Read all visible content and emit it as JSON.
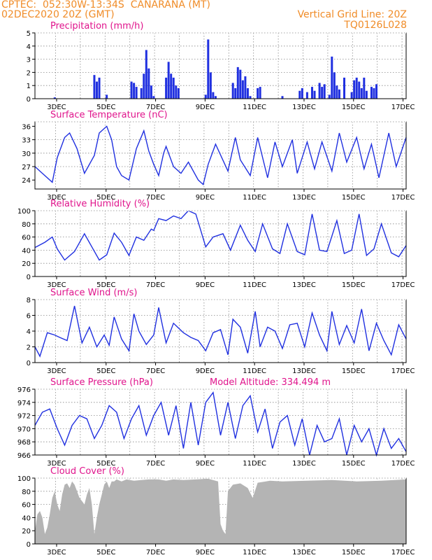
{
  "header": {
    "source_location": "CPTEC:  052:30W-13:34S  CANARANA (MT)",
    "init_time": "02DEC2020 20Z (GMT)",
    "grid_note": "Vertical Grid Line: 20Z",
    "model_code": "TQ0126L028"
  },
  "colors": {
    "header": "#f08c28",
    "title": "#e0148c",
    "line": "#2030e0",
    "cloud": "#b4b4b4"
  },
  "x_tick_labels": [
    "3DEC",
    "5DEC",
    "7DEC",
    "9DEC",
    "11DEC",
    "13DEC",
    "15DEC",
    "17DEC"
  ],
  "model_altitude": "Model Altitude: 334.494 m",
  "chart_data": [
    {
      "type": "bar",
      "title": "Precipitation (mm/h)",
      "ylim": [
        0,
        5
      ],
      "yticks": [
        "0",
        "1",
        "2",
        "3",
        "4",
        "5"
      ],
      "x_range_days": [
        2,
        17
      ],
      "x": [
        2.8,
        4.4,
        4.5,
        4.6,
        4.9,
        5.9,
        6.0,
        6.1,
        6.3,
        6.4,
        6.5,
        6.6,
        6.7,
        6.8,
        7.3,
        7.4,
        7.5,
        7.6,
        7.7,
        7.8,
        8.9,
        9.0,
        9.1,
        9.2,
        9.3,
        10.0,
        10.1,
        10.2,
        10.3,
        10.4,
        10.5,
        10.6,
        10.7,
        11.0,
        11.1,
        12.0,
        12.7,
        12.8,
        13.0,
        13.2,
        13.3,
        13.5,
        13.6,
        13.7,
        13.9,
        14.0,
        14.1,
        14.2,
        14.3,
        14.5,
        14.8,
        14.9,
        15.0,
        15.1,
        15.2,
        15.3,
        15.4,
        15.6,
        15.7,
        15.8
      ],
      "values": [
        0.1,
        1.8,
        1.3,
        1.6,
        0.3,
        1.3,
        1.2,
        0.9,
        0.8,
        1.9,
        3.7,
        2.3,
        1.0,
        0.2,
        1.6,
        2.8,
        1.9,
        1.6,
        1.0,
        0.8,
        0.3,
        4.5,
        2.0,
        0.5,
        0.2,
        1.2,
        0.8,
        2.4,
        2.2,
        1.4,
        1.7,
        0.8,
        0.2,
        0.8,
        0.9,
        0.2,
        0.6,
        0.8,
        0.5,
        0.9,
        0.6,
        1.2,
        0.9,
        1.1,
        0.3,
        3.2,
        2.0,
        1.0,
        0.7,
        1.6,
        0.5,
        1.4,
        1.6,
        1.3,
        0.8,
        1.6,
        0.6,
        0.9,
        0.8,
        1.1
      ]
    },
    {
      "type": "line",
      "title": "Surface Temperature (nC)",
      "ylim": [
        22,
        37
      ],
      "yticks": [
        "24",
        "27",
        "30",
        "33",
        "36"
      ],
      "x_range_days": [
        2,
        17
      ],
      "x": [
        2.0,
        2.3,
        2.7,
        2.9,
        3.2,
        3.4,
        3.7,
        4.0,
        4.4,
        4.6,
        4.9,
        5.1,
        5.3,
        5.5,
        5.8,
        6.1,
        6.4,
        6.6,
        6.8,
        7.0,
        7.2,
        7.3,
        7.6,
        7.9,
        8.2,
        8.6,
        8.8,
        9.0,
        9.3,
        9.8,
        10.1,
        10.3,
        10.7,
        11.0,
        11.4,
        11.7,
        12.0,
        12.4,
        12.6,
        13.0,
        13.3,
        13.6,
        14.0,
        14.3,
        14.6,
        15.0,
        15.3,
        15.6,
        15.9,
        16.3,
        16.6,
        17.0
      ],
      "values": [
        27.0,
        25.5,
        23.5,
        29.0,
        33.5,
        34.5,
        31.0,
        25.5,
        29.5,
        34.5,
        36.0,
        33.0,
        27.0,
        25.0,
        24.0,
        31.0,
        35.0,
        30.5,
        27.5,
        25.0,
        30.0,
        31.5,
        27.0,
        25.5,
        28.0,
        24.0,
        23.0,
        27.5,
        32.0,
        26.0,
        33.5,
        28.5,
        25.0,
        33.5,
        24.5,
        32.5,
        27.0,
        33.0,
        25.5,
        32.5,
        26.5,
        32.5,
        26.0,
        34.5,
        28.0,
        33.5,
        26.5,
        32.0,
        24.5,
        34.5,
        27.0,
        33.5
      ]
    },
    {
      "type": "line",
      "title": "Relative Humidity (%)",
      "ylim": [
        0,
        100
      ],
      "yticks": [
        "0",
        "20",
        "40",
        "60",
        "80",
        "100"
      ],
      "x_range_days": [
        2,
        17
      ],
      "x": [
        2.0,
        2.4,
        2.7,
        2.9,
        3.2,
        3.6,
        4.0,
        4.3,
        4.6,
        4.9,
        5.2,
        5.5,
        5.8,
        6.1,
        6.4,
        6.7,
        6.8,
        7.0,
        7.3,
        7.6,
        7.9,
        8.2,
        8.5,
        8.7,
        8.9,
        9.2,
        9.6,
        9.9,
        10.3,
        10.6,
        10.9,
        11.2,
        11.6,
        11.9,
        12.2,
        12.6,
        12.9,
        13.2,
        13.5,
        13.8,
        14.2,
        14.5,
        14.8,
        15.1,
        15.4,
        15.7,
        16.0,
        16.4,
        16.7,
        17.0
      ],
      "values": [
        44.0,
        52.0,
        60.0,
        42.0,
        25.0,
        38.0,
        65.0,
        45.0,
        25.0,
        33.0,
        66.0,
        52.0,
        32.0,
        60.0,
        55.0,
        72.0,
        70.0,
        88.0,
        85.0,
        92.0,
        88.0,
        100.0,
        95.0,
        70.0,
        45.0,
        60.0,
        65.0,
        40.0,
        78.0,
        55.0,
        38.0,
        80.0,
        42.0,
        35.0,
        80.0,
        38.0,
        33.0,
        95.0,
        40.0,
        38.0,
        85.0,
        35.0,
        40.0,
        95.0,
        32.0,
        42.0,
        80.0,
        36.0,
        30.0,
        47.0
      ]
    },
    {
      "type": "line",
      "title": "Surface Wind (m/s)",
      "ylim": [
        0,
        8
      ],
      "yticks": [
        "0",
        "2",
        "4",
        "6",
        "8"
      ],
      "x_range_days": [
        2,
        17
      ],
      "x": [
        2.0,
        2.2,
        2.5,
        2.8,
        3.0,
        3.3,
        3.6,
        3.9,
        4.2,
        4.5,
        4.8,
        5.0,
        5.2,
        5.5,
        5.8,
        6.0,
        6.2,
        6.5,
        6.8,
        7.0,
        7.3,
        7.6,
        8.0,
        8.3,
        8.6,
        8.9,
        9.2,
        9.5,
        9.8,
        10.0,
        10.3,
        10.6,
        10.9,
        11.1,
        11.4,
        11.7,
        12.0,
        12.3,
        12.6,
        12.9,
        13.2,
        13.5,
        13.8,
        14.0,
        14.3,
        14.6,
        14.9,
        15.2,
        15.5,
        15.8,
        16.1,
        16.4,
        16.7,
        17.0
      ],
      "values": [
        2.0,
        0.8,
        3.8,
        3.5,
        3.2,
        2.8,
        7.2,
        2.5,
        4.5,
        2.0,
        3.5,
        2.2,
        5.8,
        3.0,
        1.5,
        6.2,
        4.0,
        2.3,
        3.5,
        7.0,
        2.5,
        5.0,
        3.8,
        3.2,
        2.8,
        1.5,
        3.8,
        4.2,
        1.0,
        5.5,
        4.5,
        1.2,
        6.5,
        2.0,
        4.5,
        4.0,
        1.8,
        4.8,
        5.0,
        2.0,
        6.3,
        3.5,
        1.5,
        6.5,
        2.3,
        4.7,
        2.5,
        6.8,
        1.5,
        5.0,
        2.8,
        1.0,
        4.8,
        3.0
      ]
    },
    {
      "type": "line",
      "title": "Surface Pressure (hPa)",
      "ylim": [
        966,
        976
      ],
      "yticks": [
        "966",
        "968",
        "970",
        "972",
        "974",
        "976"
      ],
      "x_range_days": [
        2,
        17
      ],
      "x": [
        2.0,
        2.3,
        2.6,
        2.9,
        3.2,
        3.5,
        3.8,
        4.1,
        4.4,
        4.7,
        5.0,
        5.3,
        5.6,
        5.9,
        6.2,
        6.5,
        6.8,
        7.1,
        7.4,
        7.7,
        8.0,
        8.3,
        8.6,
        8.9,
        9.2,
        9.5,
        9.8,
        10.1,
        10.4,
        10.7,
        11.0,
        11.3,
        11.6,
        11.9,
        12.2,
        12.5,
        12.8,
        13.1,
        13.4,
        13.7,
        14.0,
        14.3,
        14.6,
        14.9,
        15.2,
        15.5,
        15.8,
        16.1,
        16.4,
        16.7,
        17.0
      ],
      "values": [
        970.5,
        972.5,
        973.0,
        970.0,
        967.5,
        970.5,
        972.0,
        971.5,
        968.5,
        970.5,
        973.5,
        972.5,
        968.5,
        971.5,
        973.5,
        969.0,
        972.0,
        974.0,
        969.0,
        973.5,
        967.0,
        974.0,
        967.5,
        974.0,
        975.5,
        969.0,
        974.0,
        968.5,
        973.5,
        975.0,
        969.5,
        973.0,
        967.0,
        971.0,
        972.0,
        967.5,
        971.5,
        966.0,
        970.5,
        968.0,
        968.5,
        971.5,
        966.0,
        970.5,
        968.0,
        970.0,
        966.0,
        970.0,
        967.0,
        968.5,
        966.5
      ]
    },
    {
      "type": "area",
      "title": "Cloud Cover (%)",
      "ylim": [
        0,
        100
      ],
      "yticks": [
        "0",
        "20",
        "40",
        "60",
        "80",
        "100"
      ],
      "x_range_days": [
        2,
        17
      ],
      "x": [
        2.0,
        2.1,
        2.2,
        2.3,
        2.4,
        2.5,
        2.6,
        2.7,
        2.8,
        2.9,
        3.0,
        3.1,
        3.2,
        3.3,
        3.4,
        3.5,
        3.6,
        3.7,
        3.8,
        3.9,
        4.0,
        4.1,
        4.2,
        4.3,
        4.4,
        4.5,
        4.6,
        4.7,
        4.8,
        4.9,
        5.0,
        5.1,
        5.2,
        5.3,
        5.5,
        5.7,
        6.0,
        6.3,
        6.6,
        7.0,
        7.3,
        7.6,
        8.0,
        8.5,
        9.0,
        9.4,
        9.5,
        9.6,
        9.7,
        9.8,
        10.0,
        10.3,
        10.6,
        10.8,
        11.0,
        11.5,
        12.0,
        13.0,
        14.0,
        15.0,
        16.0,
        17.0
      ],
      "values": [
        20,
        45,
        50,
        40,
        15,
        25,
        45,
        70,
        80,
        60,
        50,
        75,
        90,
        92,
        85,
        95,
        90,
        80,
        70,
        65,
        60,
        75,
        85,
        60,
        15,
        40,
        60,
        75,
        90,
        95,
        85,
        95,
        95,
        98,
        95,
        98,
        96,
        97,
        98,
        98,
        96,
        98,
        97,
        98,
        99,
        95,
        30,
        20,
        15,
        80,
        90,
        92,
        85,
        70,
        93,
        96,
        95,
        96,
        97,
        95,
        96,
        98
      ]
    }
  ]
}
